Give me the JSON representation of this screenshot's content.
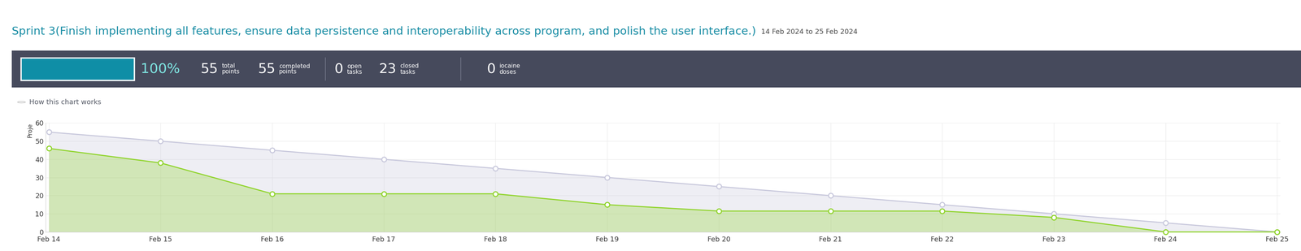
{
  "header": {
    "title": "Sprint 3(Finish implementing all features, ensure data persistence and interoperability across program, and polish the user interface.)",
    "dates": "14 Feb 2024 to 25 Feb 2024"
  },
  "summary": {
    "progress": {
      "value": 100,
      "label": "100%"
    },
    "stats": [
      {
        "value": 55,
        "label": "total points"
      },
      {
        "value": 55,
        "label": "completed points"
      },
      {
        "value": 0,
        "label": "open tasks"
      },
      {
        "value": 23,
        "label": "closed tasks"
      },
      {
        "value": 0,
        "label": "iocaine doses"
      }
    ]
  },
  "help_link": "How this chart works",
  "chart_data": {
    "type": "line",
    "y_label": "Proje",
    "categories": [
      "Feb 14",
      "Feb 15",
      "Feb 16",
      "Feb 17",
      "Feb 18",
      "Feb 19",
      "Feb 20",
      "Feb 21",
      "Feb 22",
      "Feb 23",
      "Feb 24",
      "Feb 25"
    ],
    "ylim": [
      0,
      60
    ],
    "yticks": [
      0,
      10,
      20,
      30,
      40,
      50,
      60
    ],
    "grid": true,
    "series": [
      {
        "type": "area",
        "color": "#c8c8dc",
        "marker": "o",
        "values": [
          55,
          50,
          45,
          40,
          35,
          30,
          25,
          20,
          15,
          10,
          5,
          0
        ]
      },
      {
        "type": "area",
        "color": "#8fd42a",
        "marker": "o",
        "values": [
          46,
          38,
          21,
          21,
          21,
          15,
          11.5,
          11.5,
          11.5,
          8,
          0,
          0
        ]
      }
    ]
  }
}
